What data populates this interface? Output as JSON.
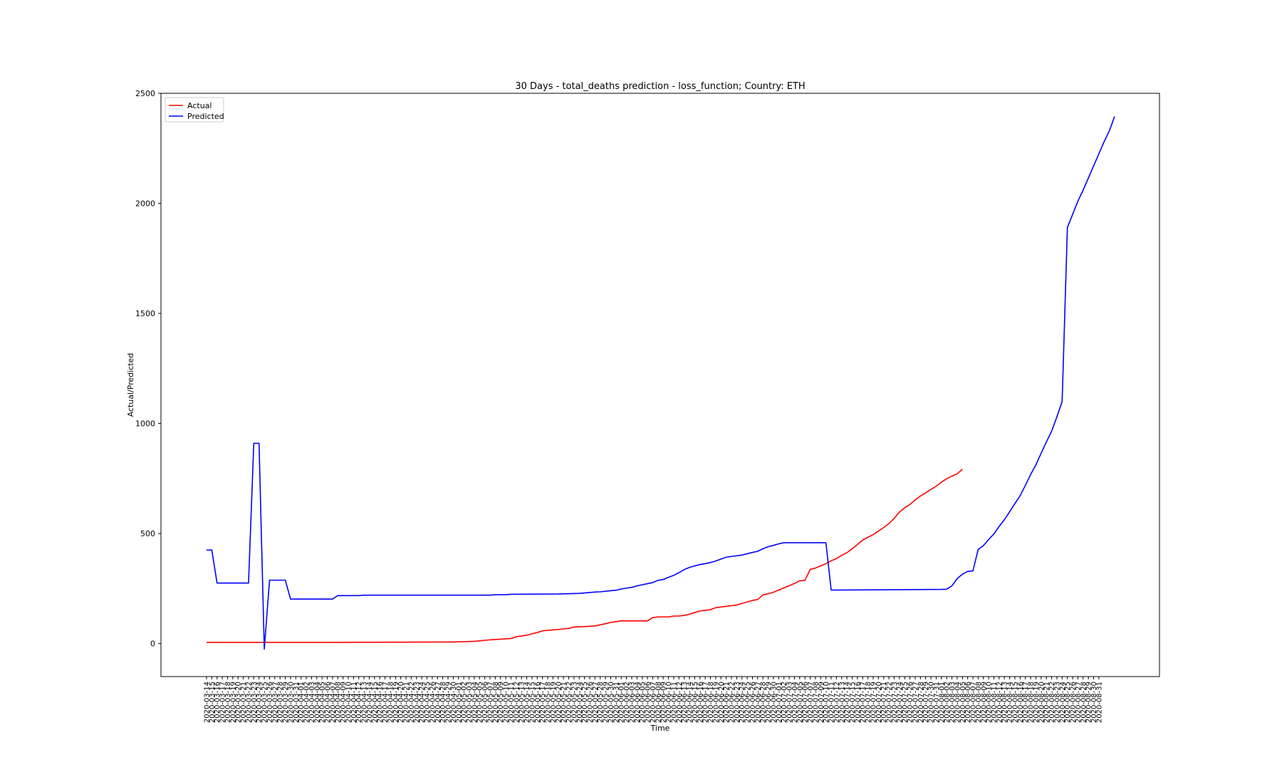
{
  "chart_data": {
    "type": "line",
    "title": "30 Days - total_deaths prediction - loss_function; Country: ETH",
    "xlabel": "Time",
    "ylabel": "Actual/Predicted",
    "x_start": "2020-03-14",
    "x_end": "2020-08-31",
    "xtick_dates": [
      "2020-03-14",
      "2020-03-15",
      "2020-03-16",
      "2020-03-17",
      "2020-03-18",
      "2020-03-19",
      "2020-03-20",
      "2020-03-21",
      "2020-03-22",
      "2020-03-23",
      "2020-03-24",
      "2020-03-25",
      "2020-03-26",
      "2020-03-27",
      "2020-03-28",
      "2020-03-29",
      "2020-03-30",
      "2020-03-31",
      "2020-04-01",
      "2020-04-02",
      "2020-04-03",
      "2020-04-04",
      "2020-04-05",
      "2020-04-06",
      "2020-04-07",
      "2020-04-08",
      "2020-04-09",
      "2020-04-10",
      "2020-04-11",
      "2020-04-12",
      "2020-04-13",
      "2020-04-14",
      "2020-04-15",
      "2020-04-16",
      "2020-04-17",
      "2020-04-18",
      "2020-04-19",
      "2020-04-20",
      "2020-04-21",
      "2020-04-22",
      "2020-04-23",
      "2020-04-24",
      "2020-04-25",
      "2020-04-26",
      "2020-04-27",
      "2020-04-28",
      "2020-04-29",
      "2020-04-30",
      "2020-05-01",
      "2020-05-02",
      "2020-05-03",
      "2020-05-04",
      "2020-05-05",
      "2020-05-06",
      "2020-05-07",
      "2020-05-08",
      "2020-05-09",
      "2020-05-10",
      "2020-05-11",
      "2020-05-12",
      "2020-05-13",
      "2020-05-14",
      "2020-05-15",
      "2020-05-16",
      "2020-05-17",
      "2020-05-18",
      "2020-05-19",
      "2020-05-20",
      "2020-05-21",
      "2020-05-22",
      "2020-05-23",
      "2020-05-24",
      "2020-05-25",
      "2020-05-26",
      "2020-05-27",
      "2020-05-28",
      "2020-05-29",
      "2020-05-30",
      "2020-05-31",
      "2020-06-01",
      "2020-06-02",
      "2020-06-03",
      "2020-06-04",
      "2020-06-05",
      "2020-06-06",
      "2020-06-07",
      "2020-06-08",
      "2020-06-09",
      "2020-06-10",
      "2020-06-11",
      "2020-06-12",
      "2020-06-13",
      "2020-06-14",
      "2020-06-15",
      "2020-06-16",
      "2020-06-17",
      "2020-06-18",
      "2020-06-19",
      "2020-06-20",
      "2020-06-21",
      "2020-06-22",
      "2020-06-23",
      "2020-06-24",
      "2020-06-25",
      "2020-06-26",
      "2020-06-27",
      "2020-06-28",
      "2020-06-29",
      "2020-06-30",
      "2020-07-01",
      "2020-07-02",
      "2020-07-03",
      "2020-07-04",
      "2020-07-05",
      "2020-07-06",
      "2020-07-07",
      "2020-07-08",
      "2020-07-09",
      "2020-07-10",
      "2020-07-11",
      "2020-07-12",
      "2020-07-13",
      "2020-07-14",
      "2020-07-15",
      "2020-07-16",
      "2020-07-17",
      "2020-07-18",
      "2020-07-19",
      "2020-07-20",
      "2020-07-21",
      "2020-07-22",
      "2020-07-23",
      "2020-07-24",
      "2020-07-25",
      "2020-07-26",
      "2020-07-27",
      "2020-07-28",
      "2020-07-29",
      "2020-07-30",
      "2020-07-31",
      "2020-08-01",
      "2020-08-02",
      "2020-08-03",
      "2020-08-04",
      "2020-08-05",
      "2020-08-06",
      "2020-08-07",
      "2020-08-08",
      "2020-08-09",
      "2020-08-10",
      "2020-08-11",
      "2020-08-12",
      "2020-08-13",
      "2020-08-14",
      "2020-08-15",
      "2020-08-16",
      "2020-08-17",
      "2020-08-18",
      "2020-08-19",
      "2020-08-20",
      "2020-08-21",
      "2020-08-22",
      "2020-08-23",
      "2020-08-24",
      "2020-08-25",
      "2020-08-26",
      "2020-08-27",
      "2020-08-28",
      "2020-08-29",
      "2020-08-30",
      "2020-08-31"
    ],
    "ylim": [
      -150,
      2500
    ],
    "yticks": [
      0,
      500,
      1000,
      1500,
      2000,
      2500
    ],
    "legend_position": "upper-left",
    "grid": false,
    "series": [
      {
        "name": "Actual",
        "color": "#ff0000",
        "points": [
          [
            "2020-03-14",
            5
          ],
          [
            "2020-04-07",
            5
          ],
          [
            "2020-04-14",
            6
          ],
          [
            "2020-04-30",
            7
          ],
          [
            "2020-05-04",
            10
          ],
          [
            "2020-05-07",
            17
          ],
          [
            "2020-05-11",
            23
          ],
          [
            "2020-05-12",
            31
          ],
          [
            "2020-05-14",
            38
          ],
          [
            "2020-05-16",
            50
          ],
          [
            "2020-05-17",
            58
          ],
          [
            "2020-05-19",
            62
          ],
          [
            "2020-05-20",
            64
          ],
          [
            "2020-05-22",
            69
          ],
          [
            "2020-05-23",
            75
          ],
          [
            "2020-05-25",
            77
          ],
          [
            "2020-05-27",
            80
          ],
          [
            "2020-05-29",
            90
          ],
          [
            "2020-05-30",
            96
          ],
          [
            "2020-06-01",
            103
          ],
          [
            "2020-06-06",
            103
          ],
          [
            "2020-06-07",
            118
          ],
          [
            "2020-06-08",
            121
          ],
          [
            "2020-06-10",
            121
          ],
          [
            "2020-06-11",
            125
          ],
          [
            "2020-06-12",
            125
          ],
          [
            "2020-06-13",
            128
          ],
          [
            "2020-06-14",
            133
          ],
          [
            "2020-06-15",
            141
          ],
          [
            "2020-06-16",
            148
          ],
          [
            "2020-06-18",
            154
          ],
          [
            "2020-06-19",
            163
          ],
          [
            "2020-06-21",
            169
          ],
          [
            "2020-06-23",
            175
          ],
          [
            "2020-06-24",
            182
          ],
          [
            "2020-06-25",
            189
          ],
          [
            "2020-06-26",
            196
          ],
          [
            "2020-06-27",
            200
          ],
          [
            "2020-06-28",
            221
          ],
          [
            "2020-06-29",
            226
          ],
          [
            "2020-06-30",
            233
          ],
          [
            "2020-07-01",
            243
          ],
          [
            "2020-07-02",
            253
          ],
          [
            "2020-07-03",
            263
          ],
          [
            "2020-07-04",
            273
          ],
          [
            "2020-07-05",
            285
          ],
          [
            "2020-07-06",
            287
          ],
          [
            "2020-07-07",
            337
          ],
          [
            "2020-07-08",
            343
          ],
          [
            "2020-07-09",
            353
          ],
          [
            "2020-07-10",
            363
          ],
          [
            "2020-07-11",
            376
          ],
          [
            "2020-07-12",
            386
          ],
          [
            "2020-07-13",
            401
          ],
          [
            "2020-07-14",
            413
          ],
          [
            "2020-07-15",
            431
          ],
          [
            "2020-07-16",
            450
          ],
          [
            "2020-07-17",
            470
          ],
          [
            "2020-07-18",
            483
          ],
          [
            "2020-07-19",
            495
          ],
          [
            "2020-07-20",
            511
          ],
          [
            "2020-07-21",
            527
          ],
          [
            "2020-07-22",
            545
          ],
          [
            "2020-07-23",
            569
          ],
          [
            "2020-07-24",
            597
          ],
          [
            "2020-07-25",
            617
          ],
          [
            "2020-07-26",
            632
          ],
          [
            "2020-07-27",
            652
          ],
          [
            "2020-07-28",
            670
          ],
          [
            "2020-07-29",
            685
          ],
          [
            "2020-07-30",
            700
          ],
          [
            "2020-07-31",
            715
          ],
          [
            "2020-08-01",
            733
          ],
          [
            "2020-08-02",
            749
          ],
          [
            "2020-08-03",
            761
          ],
          [
            "2020-08-04",
            771
          ],
          [
            "2020-08-05",
            792
          ]
        ]
      },
      {
        "name": "Predicted",
        "color": "#0000ff",
        "points": [
          [
            "2020-03-14",
            425
          ],
          [
            "2020-03-15",
            425
          ],
          [
            "2020-03-16",
            275
          ],
          [
            "2020-03-22",
            275
          ],
          [
            "2020-03-23",
            910
          ],
          [
            "2020-03-24",
            910
          ],
          [
            "2020-03-25",
            -25
          ],
          [
            "2020-03-26",
            288
          ],
          [
            "2020-03-29",
            288
          ],
          [
            "2020-03-30",
            202
          ],
          [
            "2020-04-07",
            202
          ],
          [
            "2020-04-08",
            218
          ],
          [
            "2020-04-12",
            218
          ],
          [
            "2020-04-13",
            220
          ],
          [
            "2020-05-07",
            220
          ],
          [
            "2020-05-08",
            222
          ],
          [
            "2020-05-10",
            222
          ],
          [
            "2020-05-11",
            224
          ],
          [
            "2020-05-20",
            225
          ],
          [
            "2020-05-24",
            228
          ],
          [
            "2020-05-26",
            232
          ],
          [
            "2020-05-27",
            234
          ],
          [
            "2020-05-28",
            235
          ],
          [
            "2020-05-30",
            240
          ],
          [
            "2020-05-31",
            242
          ],
          [
            "2020-06-01",
            248
          ],
          [
            "2020-06-02",
            252
          ],
          [
            "2020-06-03",
            255
          ],
          [
            "2020-06-04",
            262
          ],
          [
            "2020-06-05",
            267
          ],
          [
            "2020-06-06",
            272
          ],
          [
            "2020-06-07",
            277
          ],
          [
            "2020-06-08",
            287
          ],
          [
            "2020-06-09",
            291
          ],
          [
            "2020-06-10",
            301
          ],
          [
            "2020-06-11",
            310
          ],
          [
            "2020-06-12",
            322
          ],
          [
            "2020-06-13",
            336
          ],
          [
            "2020-06-14",
            346
          ],
          [
            "2020-06-15",
            353
          ],
          [
            "2020-06-16",
            359
          ],
          [
            "2020-06-17",
            363
          ],
          [
            "2020-06-18",
            368
          ],
          [
            "2020-06-19",
            375
          ],
          [
            "2020-06-20",
            384
          ],
          [
            "2020-06-21",
            392
          ],
          [
            "2020-06-22",
            396
          ],
          [
            "2020-06-24",
            402
          ],
          [
            "2020-06-25",
            408
          ],
          [
            "2020-06-26",
            414
          ],
          [
            "2020-06-27",
            419
          ],
          [
            "2020-06-28",
            431
          ],
          [
            "2020-06-29",
            440
          ],
          [
            "2020-06-30",
            446
          ],
          [
            "2020-07-01",
            453
          ],
          [
            "2020-07-02",
            458
          ],
          [
            "2020-07-10",
            458
          ],
          [
            "2020-07-11",
            243
          ],
          [
            "2020-07-20",
            244
          ],
          [
            "2020-08-01",
            246
          ],
          [
            "2020-08-02",
            247
          ],
          [
            "2020-08-03",
            262
          ],
          [
            "2020-08-04",
            295
          ],
          [
            "2020-08-05",
            315
          ],
          [
            "2020-08-06",
            328
          ],
          [
            "2020-08-07",
            330
          ],
          [
            "2020-08-08",
            427
          ],
          [
            "2020-08-09",
            445
          ],
          [
            "2020-08-10",
            473
          ],
          [
            "2020-08-11",
            498
          ],
          [
            "2020-08-12",
            532
          ],
          [
            "2020-08-13",
            563
          ],
          [
            "2020-08-14",
            599
          ],
          [
            "2020-08-15",
            636
          ],
          [
            "2020-08-16",
            672
          ],
          [
            "2020-08-17",
            719
          ],
          [
            "2020-08-18",
            768
          ],
          [
            "2020-08-19",
            812
          ],
          [
            "2020-08-20",
            865
          ],
          [
            "2020-08-21",
            916
          ],
          [
            "2020-08-22",
            965
          ],
          [
            "2020-08-23",
            1030
          ],
          [
            "2020-08-24",
            1100
          ],
          [
            "2020-08-25",
            1890
          ],
          [
            "2020-08-26",
            1950
          ],
          [
            "2020-08-27",
            2010
          ],
          [
            "2020-08-28",
            2060
          ],
          [
            "2020-08-29",
            2115
          ],
          [
            "2020-08-30",
            2170
          ],
          [
            "2020-08-31",
            2225
          ],
          [
            "2020-09-01",
            2280
          ],
          [
            "2020-09-02",
            2330
          ],
          [
            "2020-09-03",
            2395
          ]
        ]
      }
    ]
  }
}
